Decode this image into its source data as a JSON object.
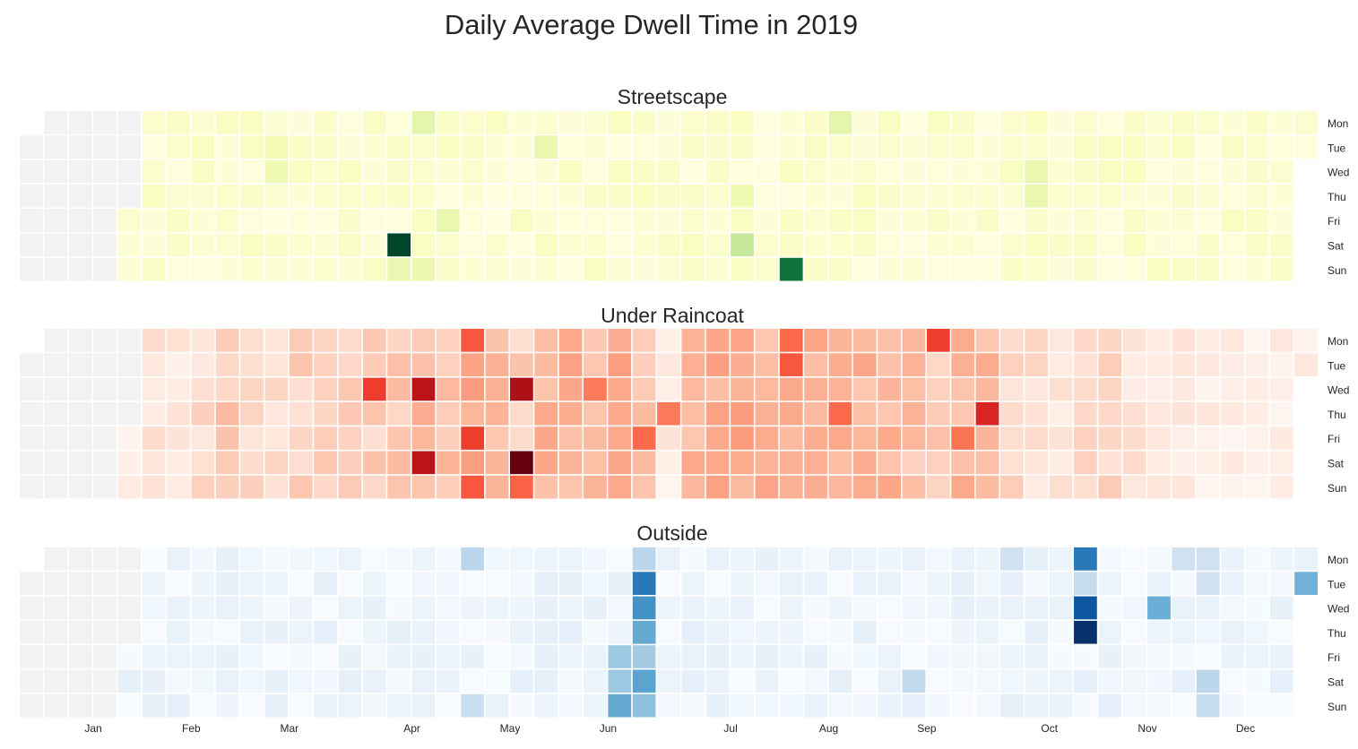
{
  "title": "Daily Average Dwell Time in 2019",
  "chart_data": {
    "type": "heatmap",
    "layout": "calendar",
    "year": 2019,
    "rows": [
      "Mon",
      "Tue",
      "Wed",
      "Thu",
      "Fri",
      "Sat",
      "Sun"
    ],
    "months": [
      "Jan",
      "Feb",
      "Mar",
      "Apr",
      "May",
      "Jun",
      "Jul",
      "Aug",
      "Sep",
      "Oct",
      "Nov",
      "Dec"
    ],
    "no_data_color": "#f2f2f2",
    "no_data_range": [
      "2019-01-01",
      "2019-01-31"
    ],
    "value_scale": "relative 0 to 1 (no colorbar printed)",
    "panels": [
      {
        "title": "Streetscape",
        "colormap": "Greens",
        "colors": [
          "#ffffe5",
          "#f7fcb9",
          "#d9f0a3",
          "#addd8e",
          "#78c679",
          "#41ab5d",
          "#238443",
          "#006837",
          "#004529"
        ],
        "baseline": 0.05,
        "noise_amplitude": 0.09,
        "highlights": [
          {
            "date": "2019-04-20",
            "value": 1.0
          },
          {
            "date": "2019-08-11",
            "value": 0.82
          },
          {
            "date": "2019-07-27",
            "value": 0.3
          },
          {
            "date": "2019-04-21",
            "value": 0.17
          },
          {
            "date": "2019-04-22",
            "value": 0.2
          },
          {
            "date": "2019-04-28",
            "value": 0.17
          },
          {
            "date": "2019-05-03",
            "value": 0.18
          },
          {
            "date": "2019-05-28",
            "value": 0.18
          },
          {
            "date": "2019-08-19",
            "value": 0.2
          },
          {
            "date": "2019-10-16",
            "value": 0.18
          },
          {
            "date": "2019-10-17",
            "value": 0.18
          },
          {
            "date": "2019-03-13",
            "value": 0.15
          },
          {
            "date": "2019-03-12",
            "value": 0.14
          },
          {
            "date": "2019-07-25",
            "value": 0.15
          }
        ]
      },
      {
        "title": "Under Raincoat",
        "colormap": "Reds",
        "colors": [
          "#fff5f0",
          "#fee0d2",
          "#fcbba1",
          "#fc9272",
          "#fb6a4a",
          "#ef3b2c",
          "#cb181d",
          "#a50f15",
          "#67000d"
        ],
        "baseline": 0.05,
        "noise_amplitude": 0.12,
        "column_level": [
          0.02,
          0.05,
          0.05,
          0.05,
          0.06,
          0.08,
          0.06,
          0.11,
          0.19,
          0.11,
          0.1,
          0.16,
          0.15,
          0.19,
          0.16,
          0.2,
          0.23,
          0.22,
          0.29,
          0.24,
          0.16,
          0.25,
          0.26,
          0.25,
          0.28,
          0.22,
          0.03,
          0.25,
          0.28,
          0.29,
          0.25,
          0.26,
          0.27,
          0.27,
          0.25,
          0.26,
          0.22,
          0.2,
          0.25,
          0.23,
          0.12,
          0.1,
          0.08,
          0.12,
          0.15,
          0.08,
          0.05,
          0.04,
          0.02,
          0.02,
          0.02,
          0.02,
          0.02
        ],
        "highlights": [
          {
            "date": "2019-05-25",
            "value": 1.0
          },
          {
            "date": "2019-05-22",
            "value": 0.85
          },
          {
            "date": "2019-04-24",
            "value": 0.8
          },
          {
            "date": "2019-04-27",
            "value": 0.8
          },
          {
            "date": "2019-10-03",
            "value": 0.7
          },
          {
            "date": "2019-04-10",
            "value": 0.62
          },
          {
            "date": "2019-05-10",
            "value": 0.62
          },
          {
            "date": "2019-09-16",
            "value": 0.62
          },
          {
            "date": "2019-05-06",
            "value": 0.55
          },
          {
            "date": "2019-05-12",
            "value": 0.55
          },
          {
            "date": "2019-05-26",
            "value": 0.52
          },
          {
            "date": "2019-06-28",
            "value": 0.5
          },
          {
            "date": "2019-08-05",
            "value": 0.5
          },
          {
            "date": "2019-08-06",
            "value": 0.55
          },
          {
            "date": "2019-08-22",
            "value": 0.5
          },
          {
            "date": "2019-09-27",
            "value": 0.47
          },
          {
            "date": "2019-07-04",
            "value": 0.45
          },
          {
            "date": "2019-06-12",
            "value": 0.45
          }
        ]
      },
      {
        "title": "Outside",
        "colormap": "Blues",
        "colors": [
          "#f7fbff",
          "#deebf7",
          "#c6dbef",
          "#9ecae1",
          "#6baed6",
          "#4292c6",
          "#2171b5",
          "#08519c",
          "#08306b"
        ],
        "baseline": 0.03,
        "noise_amplitude": 0.1,
        "highlights": [
          {
            "date": "2019-10-31",
            "value": 1.0
          },
          {
            "date": "2019-10-30",
            "value": 0.85
          },
          {
            "date": "2019-10-28",
            "value": 0.72
          },
          {
            "date": "2019-06-25",
            "value": 0.72
          },
          {
            "date": "2019-06-26",
            "value": 0.62
          },
          {
            "date": "2019-06-27",
            "value": 0.52
          },
          {
            "date": "2019-06-29",
            "value": 0.55
          },
          {
            "date": "2019-06-30",
            "value": 0.42
          },
          {
            "date": "2019-06-28",
            "value": 0.36
          },
          {
            "date": "2019-06-22",
            "value": 0.38
          },
          {
            "date": "2019-06-23",
            "value": 0.52
          },
          {
            "date": "2019-06-21",
            "value": 0.38
          },
          {
            "date": "2019-11-20",
            "value": 0.5
          },
          {
            "date": "2019-12-31",
            "value": 0.48
          },
          {
            "date": "2019-06-24",
            "value": 0.28
          },
          {
            "date": "2019-05-06",
            "value": 0.28
          },
          {
            "date": "2019-12-07",
            "value": 0.28
          },
          {
            "date": "2019-12-08",
            "value": 0.25
          },
          {
            "date": "2019-09-14",
            "value": 0.26
          },
          {
            "date": "2019-10-29",
            "value": 0.25
          },
          {
            "date": "2019-05-12",
            "value": 0.22
          },
          {
            "date": "2019-10-07",
            "value": 0.2
          },
          {
            "date": "2019-11-25",
            "value": 0.2
          },
          {
            "date": "2019-12-02",
            "value": 0.2
          },
          {
            "date": "2019-12-03",
            "value": 0.2
          }
        ]
      }
    ]
  }
}
